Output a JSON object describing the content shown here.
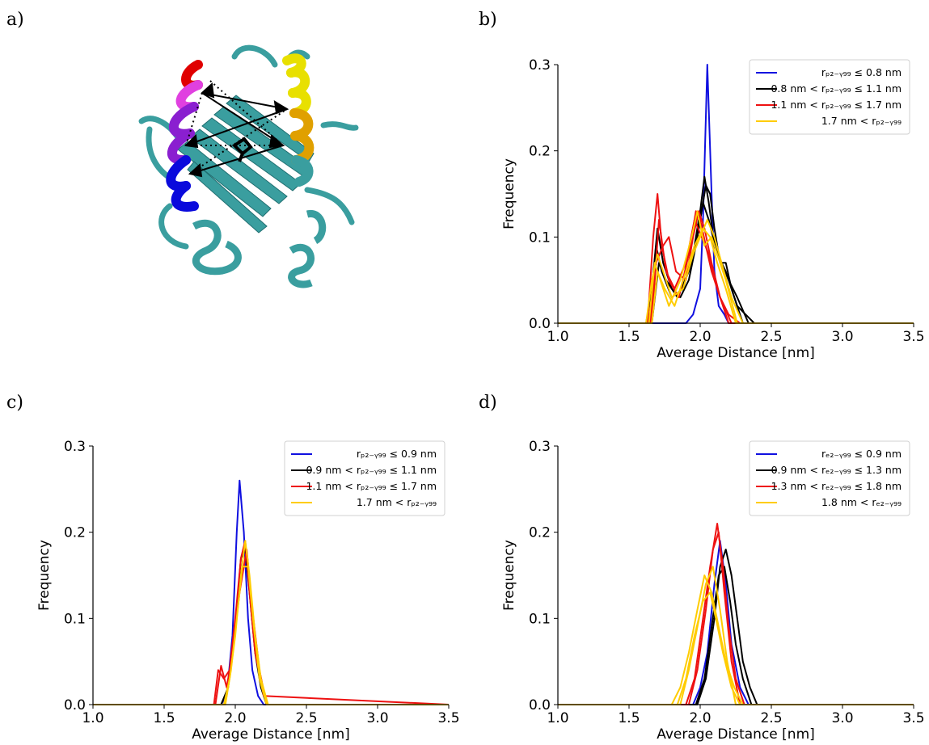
{
  "panels": {
    "a": "a)",
    "b": "b)",
    "c": "c)",
    "d": "d)"
  },
  "protein": {
    "colors": {
      "cartoon": "#3a9e9f",
      "helix_red": "#e00000",
      "helix_magenta": "#e040e0",
      "helix_purple": "#8a1fd0",
      "helix_blue": "#0a0adc",
      "helix_yellow": "#e8e000",
      "helix_orange": "#e0a000"
    }
  },
  "series_colors": {
    "blue": "#1010e0",
    "black": "#000000",
    "red": "#ee1111",
    "yellow": "#ffcc00"
  },
  "chart_data": [
    {
      "id": "b",
      "type": "line",
      "title": "",
      "xlabel": "Average Distance [nm]",
      "ylabel": "Frequency",
      "xlim": [
        1.0,
        3.5
      ],
      "ylim": [
        0.0,
        0.3
      ],
      "xticks": [
        "1.0",
        "1.5",
        "2.0",
        "2.5",
        "3.0",
        "3.5"
      ],
      "yticks": [
        "0.0",
        "0.1",
        "0.2",
        "0.3"
      ],
      "grid": false,
      "legend_position": "top-right",
      "legend": [
        {
          "color": "blue",
          "label": "rₚ₂₋ᵧ₉₉ ≤ 0.8 nm"
        },
        {
          "color": "black",
          "label": "0.8 nm < rₚ₂₋ᵧ₉₉ ≤ 1.1 nm"
        },
        {
          "color": "red",
          "label": "1.1 nm < rₚ₂₋ᵧ₉₉ ≤ 1.7 nm"
        },
        {
          "color": "yellow",
          "label": "1.7 nm < rₚ₂₋ᵧ₉₉"
        }
      ],
      "series": [
        {
          "color": "blue",
          "x": [
            1.0,
            1.9,
            1.95,
            2.0,
            2.02,
            2.05,
            2.08,
            2.1,
            2.13,
            2.17,
            2.2,
            3.5
          ],
          "y": [
            0,
            0,
            0.01,
            0.04,
            0.12,
            0.3,
            0.15,
            0.06,
            0.02,
            0.01,
            0,
            0
          ]
        },
        {
          "color": "black",
          "x": [
            1.0,
            1.62,
            1.66,
            1.7,
            1.74,
            1.8,
            1.86,
            1.92,
            1.97,
            2.0,
            2.04,
            2.07,
            2.1,
            2.14,
            2.18,
            2.22,
            2.26,
            2.32,
            2.38,
            3.5
          ],
          "y": [
            0,
            0,
            0.04,
            0.11,
            0.07,
            0.04,
            0.03,
            0.05,
            0.09,
            0.12,
            0.16,
            0.15,
            0.11,
            0.07,
            0.07,
            0.04,
            0.02,
            0.01,
            0,
            0
          ]
        },
        {
          "color": "black",
          "x": [
            1.0,
            1.64,
            1.69,
            1.73,
            1.8,
            1.88,
            1.95,
            2.0,
            2.03,
            2.06,
            2.1,
            2.15,
            2.2,
            2.26,
            2.34,
            3.5
          ],
          "y": [
            0,
            0,
            0.09,
            0.06,
            0.03,
            0.04,
            0.08,
            0.13,
            0.17,
            0.14,
            0.09,
            0.07,
            0.05,
            0.03,
            0,
            0
          ]
        },
        {
          "color": "black",
          "x": [
            1.0,
            1.66,
            1.71,
            1.76,
            1.84,
            1.92,
            1.98,
            2.02,
            2.06,
            2.12,
            2.18,
            2.24,
            2.3,
            3.5
          ],
          "y": [
            0,
            0,
            0.07,
            0.05,
            0.03,
            0.06,
            0.1,
            0.14,
            0.12,
            0.08,
            0.06,
            0.03,
            0,
            0
          ]
        },
        {
          "color": "red",
          "x": [
            1.0,
            1.63,
            1.67,
            1.7,
            1.73,
            1.78,
            1.85,
            1.92,
            1.97,
            2.0,
            2.04,
            2.08,
            2.14,
            2.2,
            2.28,
            3.5
          ],
          "y": [
            0,
            0,
            0.1,
            0.15,
            0.09,
            0.05,
            0.03,
            0.08,
            0.13,
            0.12,
            0.09,
            0.06,
            0.03,
            0.01,
            0,
            0
          ]
        },
        {
          "color": "red",
          "x": [
            1.0,
            1.65,
            1.69,
            1.74,
            1.78,
            1.83,
            1.9,
            1.95,
            1.99,
            2.03,
            2.08,
            2.14,
            2.22,
            3.5
          ],
          "y": [
            0,
            0,
            0.07,
            0.09,
            0.1,
            0.06,
            0.05,
            0.1,
            0.13,
            0.11,
            0.07,
            0.03,
            0,
            0
          ]
        },
        {
          "color": "red",
          "x": [
            1.0,
            1.66,
            1.71,
            1.76,
            1.82,
            1.9,
            1.96,
            2.01,
            2.06,
            2.12,
            2.2,
            3.5
          ],
          "y": [
            0,
            0,
            0.12,
            0.06,
            0.04,
            0.07,
            0.12,
            0.1,
            0.08,
            0.04,
            0,
            0
          ]
        },
        {
          "color": "yellow",
          "x": [
            1.0,
            1.62,
            1.66,
            1.7,
            1.74,
            1.8,
            1.88,
            1.95,
            2.0,
            2.05,
            2.1,
            2.15,
            2.22,
            2.3,
            3.5
          ],
          "y": [
            0,
            0,
            0.05,
            0.08,
            0.06,
            0.03,
            0.04,
            0.08,
            0.1,
            0.12,
            0.1,
            0.07,
            0.03,
            0,
            0
          ]
        },
        {
          "color": "yellow",
          "x": [
            1.0,
            1.64,
            1.68,
            1.72,
            1.78,
            1.86,
            1.94,
            1.98,
            2.03,
            2.08,
            2.12,
            2.18,
            2.26,
            3.5
          ],
          "y": [
            0,
            0,
            0.07,
            0.05,
            0.02,
            0.05,
            0.1,
            0.13,
            0.09,
            0.1,
            0.08,
            0.05,
            0,
            0
          ]
        },
        {
          "color": "yellow",
          "x": [
            1.0,
            1.66,
            1.7,
            1.75,
            1.82,
            1.9,
            1.96,
            2.02,
            2.07,
            2.12,
            2.18,
            2.25,
            3.5
          ],
          "y": [
            0,
            0,
            0.06,
            0.04,
            0.02,
            0.06,
            0.09,
            0.11,
            0.1,
            0.07,
            0.04,
            0,
            0
          ]
        }
      ]
    },
    {
      "id": "c",
      "type": "line",
      "title": "",
      "xlabel": "Average Distance [nm]",
      "ylabel": "Frequency",
      "xlim": [
        1.0,
        3.5
      ],
      "ylim": [
        0.0,
        0.3
      ],
      "xticks": [
        "1.0",
        "1.5",
        "2.0",
        "2.5",
        "3.0",
        "3.5"
      ],
      "yticks": [
        "0.0",
        "0.1",
        "0.2",
        "0.3"
      ],
      "grid": false,
      "legend_position": "top-right",
      "legend": [
        {
          "color": "blue",
          "label": "rₚ₂₋ᵧ₉₉ ≤ 0.9 nm"
        },
        {
          "color": "black",
          "label": "0.9 nm < rₚ₂₋ᵧ₉₉ ≤ 1.1 nm"
        },
        {
          "color": "red",
          "label": "1.1 nm < rₚ₂₋ᵧ₉₉ ≤ 1.7 nm"
        },
        {
          "color": "yellow",
          "label": "1.7 nm < rₚ₂₋ᵧ₉₉"
        }
      ],
      "series": [
        {
          "color": "blue",
          "x": [
            1.0,
            1.9,
            1.94,
            1.98,
            2.01,
            2.03,
            2.06,
            2.09,
            2.12,
            2.16,
            2.2,
            3.5
          ],
          "y": [
            0,
            0,
            0.01,
            0.08,
            0.2,
            0.26,
            0.2,
            0.1,
            0.04,
            0.01,
            0,
            0
          ]
        },
        {
          "color": "black",
          "x": [
            1.0,
            1.9,
            1.95,
            2.0,
            2.04,
            2.07,
            2.1,
            2.14,
            2.18,
            2.22,
            3.5
          ],
          "y": [
            0,
            0,
            0.02,
            0.09,
            0.17,
            0.18,
            0.13,
            0.06,
            0.02,
            0,
            0
          ]
        },
        {
          "color": "red",
          "x": [
            1.0,
            1.85,
            1.88,
            1.92,
            1.96,
            2.0,
            2.04,
            2.07,
            2.1,
            2.14,
            2.2,
            3.5
          ],
          "y": [
            0,
            0,
            0.04,
            0.03,
            0.04,
            0.1,
            0.17,
            0.19,
            0.13,
            0.06,
            0.01,
            0
          ]
        },
        {
          "color": "red",
          "x": [
            1.0,
            1.86,
            1.9,
            1.94,
            1.98,
            2.03,
            2.08,
            2.12,
            2.17,
            2.22,
            3.5
          ],
          "y": [
            0,
            0,
            0.045,
            0.02,
            0.06,
            0.13,
            0.18,
            0.11,
            0.04,
            0,
            0
          ]
        },
        {
          "color": "yellow",
          "x": [
            1.0,
            1.92,
            1.96,
            2.0,
            2.04,
            2.07,
            2.1,
            2.14,
            2.18,
            2.23,
            3.5
          ],
          "y": [
            0,
            0,
            0.03,
            0.08,
            0.15,
            0.19,
            0.15,
            0.08,
            0.03,
            0,
            0
          ]
        },
        {
          "color": "yellow",
          "x": [
            1.0,
            1.93,
            1.97,
            2.01,
            2.05,
            2.09,
            2.13,
            2.17,
            2.22,
            3.5
          ],
          "y": [
            0,
            0,
            0.04,
            0.1,
            0.16,
            0.16,
            0.09,
            0.03,
            0,
            0
          ]
        }
      ]
    },
    {
      "id": "d",
      "type": "line",
      "title": "",
      "xlabel": "Average Distance [nm]",
      "ylabel": "Frequency",
      "xlim": [
        1.0,
        3.5
      ],
      "ylim": [
        0.0,
        0.3
      ],
      "xticks": [
        "1.0",
        "1.5",
        "2.0",
        "2.5",
        "3.0",
        "3.5"
      ],
      "yticks": [
        "0.0",
        "0.1",
        "0.2",
        "0.3"
      ],
      "grid": false,
      "legend_position": "top-right",
      "legend": [
        {
          "color": "blue",
          "label": "rₑ₂₋ᵧ₉₉ ≤ 0.9 nm"
        },
        {
          "color": "black",
          "label": "0.9 nm < rₑ₂₋ᵧ₉₉ ≤ 1.3 nm"
        },
        {
          "color": "red",
          "label": "1.3 nm < rₑ₂₋ᵧ₉₉ ≤ 1.8 nm"
        },
        {
          "color": "yellow",
          "label": "1.8 nm < rₑ₂₋ᵧ₉₉"
        }
      ],
      "series": [
        {
          "color": "blue",
          "x": [
            1.0,
            1.95,
            2.0,
            2.05,
            2.1,
            2.14,
            2.18,
            2.22,
            2.28,
            2.34,
            3.5
          ],
          "y": [
            0,
            0,
            0.02,
            0.06,
            0.14,
            0.19,
            0.14,
            0.07,
            0.02,
            0,
            0
          ]
        },
        {
          "color": "black",
          "x": [
            1.0,
            1.98,
            2.04,
            2.1,
            2.14,
            2.18,
            2.22,
            2.26,
            2.3,
            2.35,
            2.4,
            3.5
          ],
          "y": [
            0,
            0,
            0.03,
            0.1,
            0.16,
            0.18,
            0.15,
            0.1,
            0.05,
            0.02,
            0,
            0
          ]
        },
        {
          "color": "black",
          "x": [
            1.0,
            1.97,
            2.03,
            2.08,
            2.13,
            2.17,
            2.21,
            2.25,
            2.3,
            2.36,
            3.5
          ],
          "y": [
            0,
            0,
            0.03,
            0.09,
            0.15,
            0.16,
            0.12,
            0.07,
            0.03,
            0,
            0
          ]
        },
        {
          "color": "red",
          "x": [
            1.0,
            1.9,
            1.96,
            2.02,
            2.07,
            2.12,
            2.16,
            2.2,
            2.25,
            2.31,
            3.5
          ],
          "y": [
            0,
            0,
            0.03,
            0.1,
            0.16,
            0.21,
            0.16,
            0.09,
            0.03,
            0,
            0
          ]
        },
        {
          "color": "red",
          "x": [
            1.0,
            1.92,
            1.98,
            2.04,
            2.09,
            2.13,
            2.17,
            2.22,
            2.28,
            3.5
          ],
          "y": [
            0,
            0,
            0.04,
            0.11,
            0.18,
            0.2,
            0.13,
            0.05,
            0,
            0
          ]
        },
        {
          "color": "yellow",
          "x": [
            1.0,
            1.8,
            1.86,
            1.92,
            1.98,
            2.03,
            2.08,
            2.13,
            2.18,
            2.24,
            2.3,
            3.5
          ],
          "y": [
            0,
            0,
            0.02,
            0.06,
            0.11,
            0.15,
            0.13,
            0.09,
            0.05,
            0.02,
            0,
            0
          ]
        },
        {
          "color": "yellow",
          "x": [
            1.0,
            1.84,
            1.9,
            1.96,
            2.02,
            2.07,
            2.11,
            2.16,
            2.22,
            2.28,
            3.5
          ],
          "y": [
            0,
            0,
            0.03,
            0.08,
            0.12,
            0.13,
            0.1,
            0.06,
            0.02,
            0,
            0
          ]
        },
        {
          "color": "yellow",
          "x": [
            1.0,
            1.86,
            1.92,
            1.98,
            2.04,
            2.09,
            2.14,
            2.19,
            2.25,
            3.5
          ],
          "y": [
            0,
            0,
            0.04,
            0.09,
            0.14,
            0.16,
            0.11,
            0.05,
            0,
            0
          ]
        }
      ]
    }
  ]
}
